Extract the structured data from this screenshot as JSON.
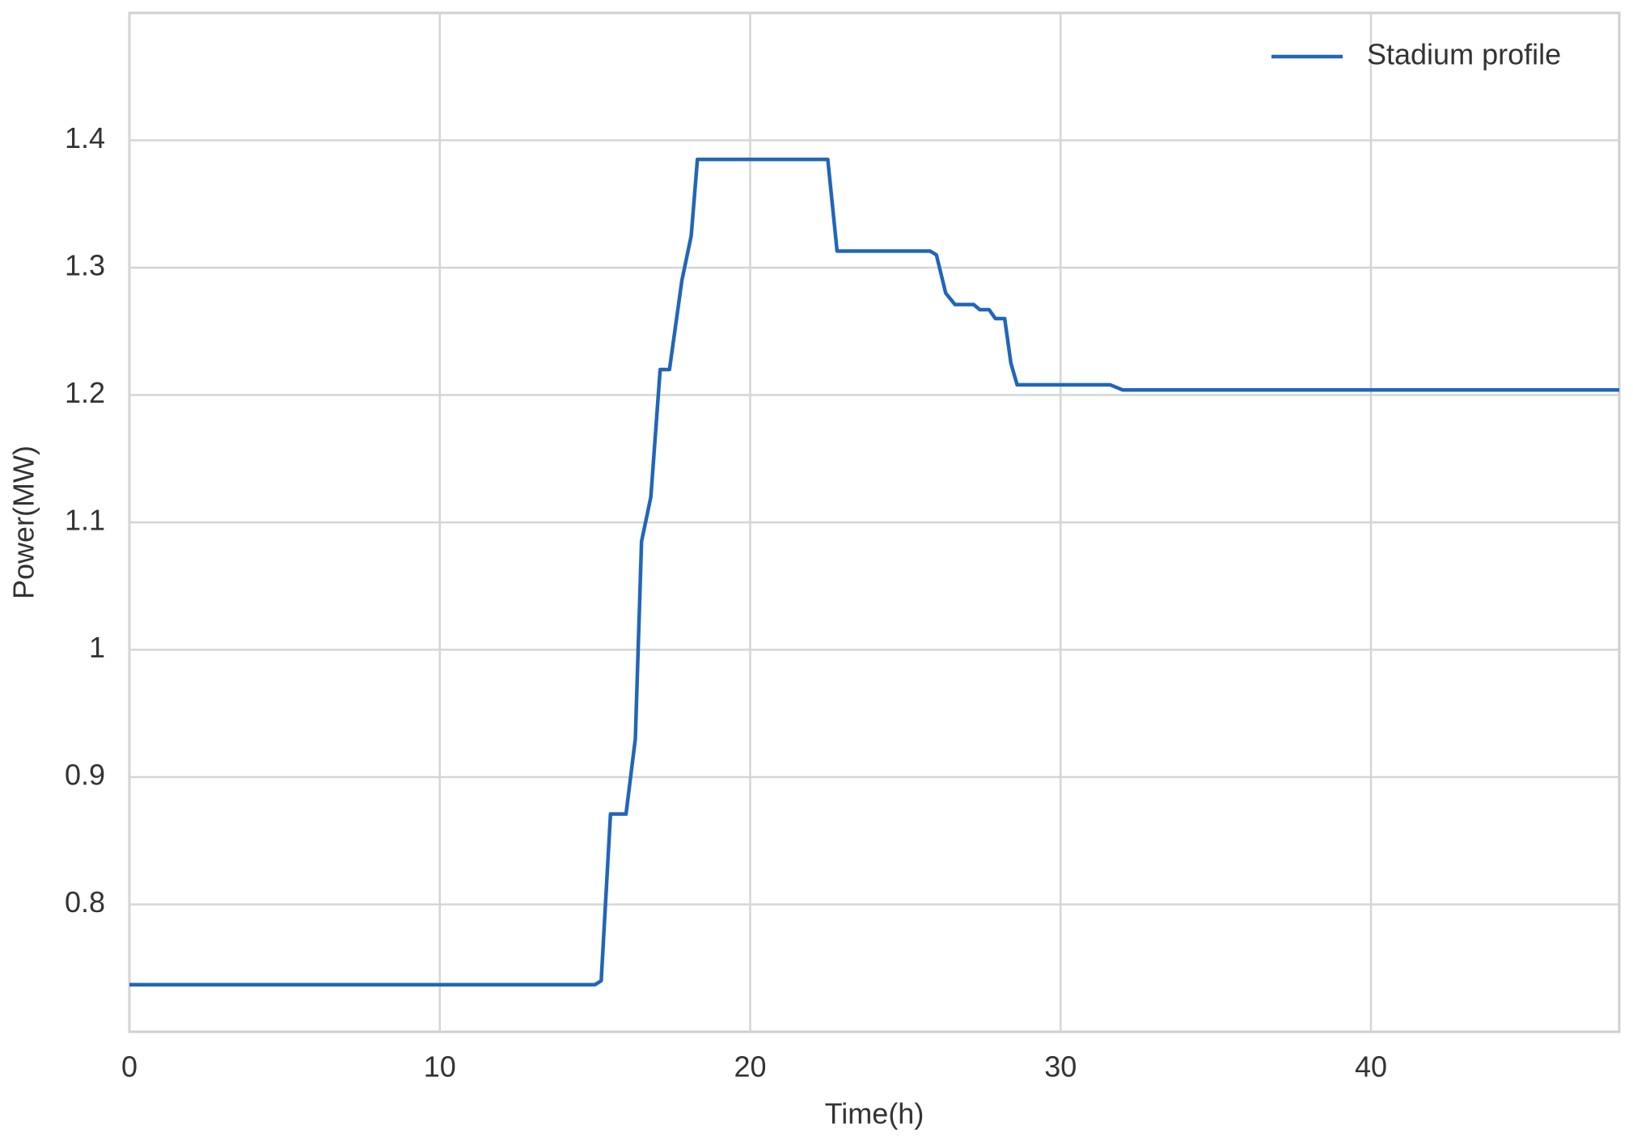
{
  "chart_data": {
    "type": "line",
    "x_label": "Time(h)",
    "y_label": "Power(MW)",
    "x": [
      0,
      15,
      15.2,
      15.5,
      16,
      16.3,
      16.5,
      16.8,
      17.1,
      17.4,
      17.8,
      18.1,
      18.3,
      22.5,
      22.8,
      25.8,
      26,
      26.3,
      26.6,
      27.2,
      27.4,
      27.7,
      27.9,
      28.2,
      28.4,
      28.6,
      31.6,
      32,
      48
    ],
    "series": [
      {
        "name": "Stadium profile",
        "color": "#2166b8",
        "values": [
          0.737,
          0.737,
          0.74,
          0.871,
          0.871,
          0.93,
          1.085,
          1.12,
          1.22,
          1.22,
          1.29,
          1.325,
          1.385,
          1.385,
          1.313,
          1.313,
          1.31,
          1.28,
          1.271,
          1.271,
          1.267,
          1.267,
          1.26,
          1.26,
          1.225,
          1.208,
          1.208,
          1.204,
          1.204
        ]
      }
    ],
    "xlim": [
      0,
      48
    ],
    "xticks": [
      0,
      10,
      20,
      30,
      40
    ],
    "ylim": [
      0.7,
      1.5
    ],
    "yticks": [
      0.8,
      0.9,
      1,
      1.1,
      1.2,
      1.3,
      1.4
    ],
    "grid": true,
    "legend": "upper right"
  }
}
